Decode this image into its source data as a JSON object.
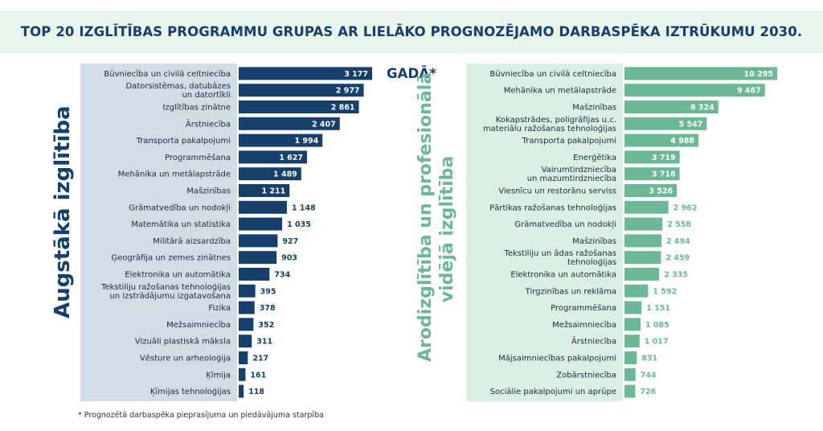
{
  "title": "TOP 20 IZGLĪTĪBAS PROGRAMMU GRUPAS AR LIELĀKO PROGNOZĒJAMO DARBASPĒKA IZTRŪKUMU 2030. GADĀ*",
  "footnote": "*  Prognozētā darbaspēka pieprasījuma un piedāvājuma starpība",
  "colors": {
    "higher": "#173f6c",
    "vocational": "#6cb896"
  },
  "chart_data": [
    {
      "type": "bar",
      "orientation": "horizontal",
      "group_label": "Augstākā izglītība",
      "categories": [
        "Būvniecība un civilā celtniecība",
        "Datorsistēmas, datubāzes\nun datortīkli",
        "Izglītības zinātne",
        "Ārstniecība",
        "Transporta pakalpojumi",
        "Programmēšana",
        "Mehānika un metālapstrāde",
        "Mašzinības",
        "Grāmatvedība un nodokļi",
        "Matemātika un statistika",
        "Militārā aizsardzība",
        "Ģeogrāfija un zemes zinātnes",
        "Elektronika un automātika",
        "Tekstiliju ražošanas tehnoloģijas\nun izstrādājumu izgatavošana",
        "Fizika",
        "Mežsaimniecība",
        "Vizuāli plastiskā māksla",
        "Vēsture un arheoloģija",
        "Ķīmija",
        "Ķīmijas tehnoloģijas"
      ],
      "values": [
        3177,
        2977,
        2861,
        2407,
        1994,
        1627,
        1489,
        1211,
        1148,
        1035,
        927,
        903,
        734,
        395,
        378,
        352,
        311,
        217,
        161,
        118
      ],
      "value_labels": [
        "3 177",
        "2 977",
        "2 861",
        "2 407",
        "1 994",
        "1 627",
        "1 489",
        "1 211",
        "1 148",
        "1 035",
        "927",
        "903",
        "734",
        "395",
        "378",
        "352",
        "311",
        "217",
        "161",
        "118"
      ]
    },
    {
      "type": "bar",
      "orientation": "horizontal",
      "group_label": "Arodizglītība un profesionālā\nvidējā izglītība",
      "categories": [
        "Būvniecība un civilā celtniecība",
        "Mehānika un metālapstrāde",
        "Mašzinības",
        "Kokapstrādes, poligrāfijas u.c.\nmateriālu ražošanas tehnoloģijas",
        "Transporta pakalpojumi",
        "Enerģētika",
        "Vairumtirdzniecība\nun mazumtirdzniecība",
        "Viesnīcu un restorānu serviss",
        "Pārtikas ražošanas tehnoloģijas",
        "Grāmatvedība un nodokļi",
        "Mašzinības",
        "Tekstiliju un ādas ražošanas\ntehnoloģijas",
        "Elektronika un automātika",
        "Tirgzinības un reklāma",
        "Programmēšana",
        "Mežsaimniecība",
        "Ārstniecība",
        "Mājsaimniecības pakalpojumi",
        "Zobārstniecība",
        "Sociālie pakalpojumi un aprūpe"
      ],
      "values": [
        10295,
        9467,
        6324,
        5547,
        4988,
        3719,
        3716,
        3526,
        2962,
        2558,
        2494,
        2459,
        2335,
        1592,
        1151,
        1085,
        1017,
        831,
        744,
        726
      ],
      "value_labels": [
        "10 295",
        "9 467",
        "6 324",
        "5 547",
        "4 988",
        "3 719",
        "3 716",
        "3 526",
        "2 962",
        "2 558",
        "2 494",
        "2 459",
        "2 335",
        "1 592",
        "1 151",
        "1 085",
        "1 017",
        "831",
        "744",
        "726"
      ]
    }
  ]
}
